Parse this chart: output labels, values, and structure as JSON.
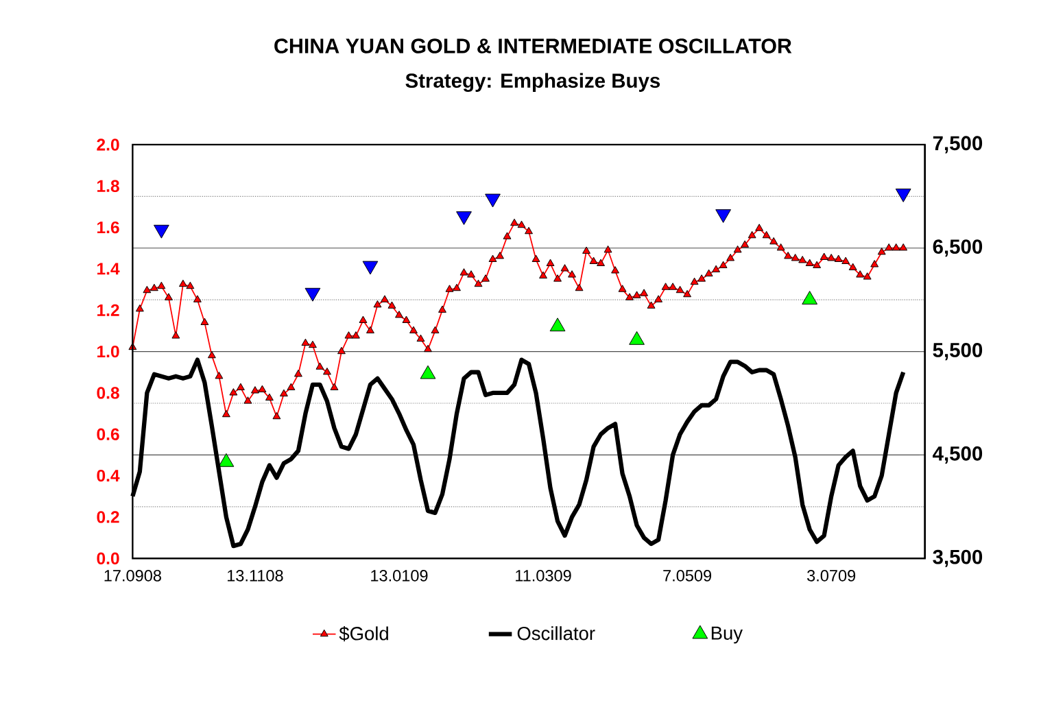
{
  "chart_data": {
    "type": "line",
    "title": "CHINA YUAN GOLD & INTERMEDIATE OSCILLATOR",
    "subtitle": "Strategy: Emphasize Buys",
    "categories": [
      "17.0908",
      null,
      null,
      null,
      null,
      null,
      null,
      null,
      null,
      null,
      null,
      null,
      null,
      null,
      null,
      null,
      null,
      "13.1108",
      null,
      null,
      null,
      null,
      null,
      null,
      null,
      null,
      null,
      null,
      null,
      null,
      null,
      null,
      null,
      null,
      null,
      null,
      null,
      "13.0109",
      null,
      null,
      null,
      null,
      null,
      null,
      null,
      null,
      null,
      null,
      null,
      null,
      null,
      null,
      null,
      null,
      null,
      null,
      null,
      "11.0309",
      null,
      null,
      null,
      null,
      null,
      null,
      null,
      null,
      null,
      null,
      null,
      null,
      null,
      null,
      null,
      null,
      null,
      null,
      null,
      "7.0509",
      null,
      null,
      null,
      null,
      null,
      null,
      null,
      null,
      null,
      null,
      null,
      null,
      null,
      null,
      null,
      null,
      null,
      null,
      null,
      "3.0709",
      null,
      null,
      null,
      null,
      null,
      null,
      null,
      null,
      null,
      null,
      null,
      null,
      null
    ],
    "series": [
      {
        "name": "$Gold",
        "type": "line",
        "axis": "y2",
        "marker": "triangle",
        "color": "#ff0000",
        "values": [
          5540,
          5910,
          6090,
          6110,
          6130,
          6020,
          5650,
          6150,
          6130,
          6000,
          5780,
          5460,
          5260,
          4890,
          5100,
          5150,
          5020,
          5120,
          5130,
          5050,
          4870,
          5090,
          5150,
          5280,
          5580,
          5560,
          5350,
          5300,
          5150,
          5500,
          5650,
          5650,
          5800,
          5700,
          5950,
          6000,
          5940,
          5850,
          5800,
          5700,
          5620,
          5520,
          5700,
          5900,
          6100,
          6110,
          6260,
          6240,
          6150,
          6200,
          6390,
          6420,
          6610,
          6740,
          6720,
          6660,
          6390,
          6230,
          6350,
          6200,
          6300,
          6240,
          6110,
          6470,
          6370,
          6350,
          6480,
          6280,
          6100,
          6020,
          6040,
          6060,
          5940,
          6000,
          6120,
          6120,
          6090,
          6050,
          6170,
          6200,
          6250,
          6290,
          6330,
          6400,
          6480,
          6530,
          6620,
          6690,
          6620,
          6560,
          6500,
          6420,
          6400,
          6380,
          6350,
          6330,
          6410,
          6400,
          6390,
          6370,
          6310,
          6240,
          6220,
          6340,
          6460,
          6500,
          6500,
          6500,
          null,
          null,
          null
        ]
      },
      {
        "name": "Oscillator",
        "type": "line",
        "axis": "y",
        "marker": "none",
        "color": "#000000",
        "values": [
          0.3,
          0.42,
          0.8,
          0.89,
          0.88,
          0.87,
          0.88,
          0.87,
          0.88,
          0.96,
          0.85,
          0.64,
          0.42,
          0.2,
          0.06,
          0.07,
          0.14,
          0.25,
          0.37,
          0.45,
          0.39,
          0.46,
          0.48,
          0.52,
          0.7,
          0.84,
          0.84,
          0.76,
          0.63,
          0.54,
          0.53,
          0.6,
          0.72,
          0.84,
          0.87,
          0.82,
          0.77,
          0.7,
          0.62,
          0.55,
          0.38,
          0.23,
          0.22,
          0.31,
          0.48,
          0.7,
          0.87,
          0.9,
          0.9,
          0.79,
          0.8,
          0.8,
          0.8,
          0.84,
          0.96,
          0.94,
          0.8,
          0.58,
          0.34,
          0.18,
          0.11,
          0.2,
          0.26,
          0.38,
          0.54,
          0.6,
          0.63,
          0.65,
          0.41,
          0.3,
          0.16,
          0.1,
          0.07,
          0.09,
          0.28,
          0.5,
          0.6,
          0.66,
          0.71,
          0.74,
          0.74,
          0.77,
          0.88,
          0.95,
          0.95,
          0.93,
          0.9,
          0.91,
          0.91,
          0.89,
          0.77,
          0.64,
          0.49,
          0.26,
          0.14,
          0.08,
          0.11,
          0.3,
          0.45,
          0.49,
          0.52,
          0.35,
          0.28,
          0.3,
          0.4,
          0.6,
          0.8,
          0.9,
          null,
          null,
          null
        ]
      },
      {
        "name": "Buy",
        "type": "scatter",
        "axis": "y2",
        "marker": "triangle",
        "color": "#00ff00",
        "values": [
          null,
          null,
          null,
          null,
          null,
          null,
          null,
          null,
          null,
          null,
          null,
          null,
          null,
          4430,
          null,
          null,
          null,
          null,
          null,
          null,
          null,
          null,
          null,
          null,
          null,
          null,
          null,
          null,
          null,
          null,
          null,
          null,
          null,
          null,
          null,
          null,
          null,
          null,
          null,
          null,
          null,
          5280,
          null,
          null,
          null,
          null,
          null,
          null,
          null,
          null,
          null,
          null,
          null,
          null,
          null,
          null,
          null,
          null,
          null,
          5740,
          null,
          null,
          null,
          null,
          null,
          null,
          null,
          null,
          null,
          null,
          5610,
          null,
          null,
          null,
          null,
          null,
          null,
          null,
          null,
          null,
          null,
          null,
          null,
          null,
          null,
          null,
          null,
          null,
          null,
          null,
          null,
          null,
          null,
          null,
          6000,
          null,
          null,
          null,
          null,
          null,
          null,
          null,
          null,
          null,
          null,
          null,
          null,
          null,
          null,
          null,
          null
        ]
      },
      {
        "type": "scatter",
        "axis": "y2",
        "marker": "triangle_down",
        "color": "#0000ff",
        "values": [
          null,
          null,
          null,
          null,
          6680,
          null,
          null,
          null,
          null,
          null,
          null,
          null,
          null,
          null,
          null,
          null,
          null,
          null,
          null,
          null,
          null,
          null,
          null,
          null,
          null,
          6070,
          null,
          null,
          null,
          null,
          null,
          null,
          null,
          6330,
          null,
          null,
          null,
          null,
          null,
          null,
          null,
          null,
          null,
          null,
          null,
          null,
          6810,
          null,
          null,
          null,
          6980,
          null,
          null,
          null,
          null,
          null,
          null,
          null,
          null,
          null,
          null,
          null,
          null,
          null,
          null,
          null,
          null,
          null,
          null,
          null,
          null,
          null,
          null,
          null,
          null,
          null,
          null,
          null,
          null,
          null,
          null,
          null,
          6830,
          null,
          null,
          null,
          null,
          null,
          null,
          null,
          null,
          null,
          null,
          null,
          null,
          null,
          null,
          null,
          null,
          null,
          null,
          null,
          null,
          null,
          null,
          null,
          null,
          7030,
          null,
          null,
          null
        ]
      }
    ],
    "ylim": [
      0,
      2
    ],
    "yticks": [
      {
        "value": 0,
        "label": "0.0"
      },
      {
        "value": 0.2,
        "label": "0.2"
      },
      {
        "value": 0.4,
        "label": "0.4"
      },
      {
        "value": 0.6,
        "label": "0.6"
      },
      {
        "value": 0.8,
        "label": "0.8"
      },
      {
        "value": 1,
        "label": "1.0"
      },
      {
        "value": 1.2,
        "label": "1.2"
      },
      {
        "value": 1.4,
        "label": "1.4"
      },
      {
        "value": 1.6,
        "label": "1.6"
      },
      {
        "value": 1.8,
        "label": "1.8"
      },
      {
        "value": 2,
        "label": "2.0"
      }
    ],
    "y2lim": [
      3500,
      7500
    ],
    "y2ticks": [
      {
        "value": 3500,
        "label": "3,500"
      },
      {
        "value": 4000,
        "label": null
      },
      {
        "value": 4500,
        "label": "4,500"
      },
      {
        "value": 5000,
        "label": null
      },
      {
        "value": 5500,
        "label": "5,500"
      },
      {
        "value": 6000,
        "label": null
      },
      {
        "value": 6500,
        "label": "6,500"
      },
      {
        "value": 7000,
        "label": null
      },
      {
        "value": 7500,
        "label": "7,500"
      }
    ],
    "grid": true,
    "legend": "bottom"
  }
}
